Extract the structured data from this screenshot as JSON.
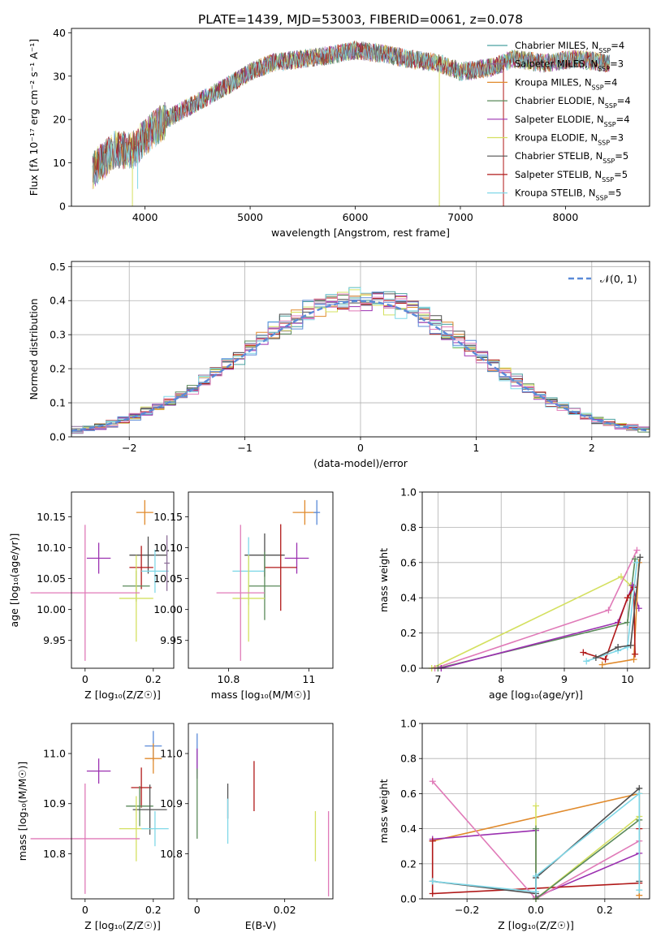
{
  "title": "PLATE=1439, MJD=53003, FIBERID=0061, z=0.078",
  "colors": {
    "Chabrier MILES": "#4aa0a0",
    "Salpeter MILES": "#8c6e98",
    "Kroupa MILES": "#e08a2c",
    "Chabrier ELODIE": "#5a8a5a",
    "Salpeter ELODIE": "#9b30b0",
    "Kroupa ELODIE": "#d4e060",
    "Chabrier STELIB": "#505050",
    "Salpeter STELIB": "#b01818",
    "Kroupa STELIB": "#80d8e8",
    "normal": "#5a8ad8",
    "pink": "#e07ab8",
    "blue": "#5a8ad8"
  },
  "legend1": {
    "models": [
      {
        "name": "Chabrier MILES",
        "n": "4"
      },
      {
        "name": "Salpeter MILES",
        "n": "3"
      },
      {
        "name": "Kroupa MILES",
        "n": "4"
      },
      {
        "name": "Chabrier ELODIE",
        "n": "4"
      },
      {
        "name": "Salpeter ELODIE",
        "n": "4"
      },
      {
        "name": "Kroupa ELODIE",
        "n": "3"
      },
      {
        "name": "Chabrier STELIB",
        "n": "5"
      },
      {
        "name": "Salpeter STELIB",
        "n": "5"
      },
      {
        "name": "Kroupa STELIB",
        "n": "5"
      }
    ],
    "nssp_prefix": "N",
    "nssp_sub": "SSP"
  },
  "legend2": {
    "label": "𝒩(0, 1)"
  },
  "chart_data": [
    {
      "type": "line",
      "id": "spectrum",
      "xlabel": "wavelength [Angstrom, rest frame]",
      "ylabel": "Flux [fλ 10⁻¹⁷ erg cm⁻² s⁻¹ A⁻¹]",
      "xlim": [
        3300,
        8800
      ],
      "ylim": [
        0,
        41
      ],
      "xticks": [
        4000,
        5000,
        6000,
        7000,
        8000
      ],
      "yticks": [
        0,
        10,
        20,
        30,
        40
      ],
      "x_range": [
        3500,
        8420
      ],
      "continuum": [
        [
          3500,
          8
        ],
        [
          3700,
          13
        ],
        [
          3900,
          13
        ],
        [
          4000,
          16
        ],
        [
          4200,
          20
        ],
        [
          4500,
          24
        ],
        [
          4800,
          28
        ],
        [
          5000,
          31
        ],
        [
          5200,
          33
        ],
        [
          5500,
          34
        ],
        [
          5800,
          35
        ],
        [
          6000,
          36
        ],
        [
          6300,
          35
        ],
        [
          6500,
          34
        ],
        [
          6800,
          33
        ],
        [
          7000,
          31
        ],
        [
          7300,
          32
        ],
        [
          7500,
          34
        ],
        [
          7800,
          33
        ],
        [
          8100,
          34
        ],
        [
          8400,
          33
        ]
      ]
    },
    {
      "type": "bar",
      "id": "residual_histogram",
      "xlabel": "(data-model)/error",
      "ylabel": "Normed distribution",
      "xlim": [
        -2.5,
        2.5
      ],
      "ylim": [
        0,
        0.515
      ],
      "xticks": [
        -2,
        -1,
        0,
        1,
        2
      ],
      "yticks": [
        0.0,
        0.1,
        0.2,
        0.3,
        0.4,
        0.5
      ],
      "bin_width": 0.1,
      "grid": true,
      "legend_position": "top-right",
      "normal_curve": "N(0,1)"
    },
    {
      "type": "scatter",
      "id": "age_vs_Z",
      "xlabel": "Z [log₁₀(Z/Z☉)]",
      "ylabel": "age  [log₁₀(age/yr)]",
      "xlim": [
        -0.04,
        0.26
      ],
      "ylim": [
        9.905,
        10.19
      ],
      "xticks": [
        0.0,
        0.2
      ],
      "yticks": [
        9.95,
        10.0,
        10.05,
        10.1,
        10.15
      ],
      "points": [
        {
          "series": "Kroupa MILES",
          "x": 0.175,
          "y": 10.157,
          "xerr": 0.025,
          "yerr": 0.02
        },
        {
          "series": "Salpeter ELODIE",
          "x": 0.04,
          "y": 10.083,
          "xerr": 0.035,
          "yerr": 0.025
        },
        {
          "series": "Chabrier STELIB",
          "x": 0.185,
          "y": 10.088,
          "xerr": 0.055,
          "yerr": 0.03
        },
        {
          "series": "Salpeter STELIB",
          "x": 0.165,
          "y": 10.068,
          "xerr": 0.035,
          "yerr": 0.035
        },
        {
          "series": "Kroupa STELIB",
          "x": 0.205,
          "y": 10.062,
          "xerr": 0.04,
          "yerr": 0.035
        },
        {
          "series": "Chabrier ELODIE",
          "x": 0.15,
          "y": 10.038,
          "xerr": 0.04,
          "yerr": 0.025
        },
        {
          "series": "Kroupa ELODIE",
          "x": 0.15,
          "y": 10.018,
          "xerr": 0.05,
          "yerr": 0.07
        },
        {
          "series": "Salpeter MILES",
          "x": 0.24,
          "y": 10.075,
          "xerr": 0.008,
          "yerr": 0.045
        },
        {
          "series": "pink",
          "x": 0.0,
          "y": 10.027,
          "xerr": 0.16,
          "yerr": 0.11
        }
      ]
    },
    {
      "type": "scatter",
      "id": "age_vs_mass",
      "xlabel": "mass [log₁₀(M/M☉)]",
      "ylabel": "",
      "xlim": [
        10.7,
        11.06
      ],
      "ylim": [
        9.905,
        10.19
      ],
      "xticks": [
        10.8,
        11.0
      ],
      "yticks": [
        9.95,
        10.0,
        10.05,
        10.1,
        10.15
      ],
      "points": [
        {
          "series": "Kroupa MILES",
          "x": 10.99,
          "y": 10.157,
          "xerr": 0.03,
          "yerr": 0.02
        },
        {
          "series": "blue",
          "x": 11.02,
          "y": 10.157,
          "xerr": 0.008,
          "yerr": 0.02
        },
        {
          "series": "Chabrier STELIB",
          "x": 10.89,
          "y": 10.088,
          "xerr": 0.05,
          "yerr": 0.035
        },
        {
          "series": "Salpeter ELODIE",
          "x": 10.97,
          "y": 10.083,
          "xerr": 0.03,
          "yerr": 0.025
        },
        {
          "series": "Salpeter STELIB",
          "x": 10.93,
          "y": 10.068,
          "xerr": 0.04,
          "yerr": 0.07
        },
        {
          "series": "Kroupa STELIB",
          "x": 10.85,
          "y": 10.062,
          "xerr": 0.04,
          "yerr": 0.055
        },
        {
          "series": "Chabrier ELODIE",
          "x": 10.89,
          "y": 10.038,
          "xerr": 0.04,
          "yerr": 0.055
        },
        {
          "series": "Kroupa ELODIE",
          "x": 10.85,
          "y": 10.018,
          "xerr": 0.04,
          "yerr": 0.07
        },
        {
          "series": "pink",
          "x": 10.83,
          "y": 10.027,
          "xerr": 0.06,
          "yerr": 0.11
        }
      ]
    },
    {
      "type": "line",
      "id": "mass_weight_vs_age",
      "xlabel": "age  [log₁₀(age/yr)]",
      "ylabel": "mass weight",
      "xlim": [
        6.75,
        10.35
      ],
      "ylim": [
        0,
        1
      ],
      "xticks": [
        7,
        8,
        9,
        10
      ],
      "yticks": [
        0.0,
        0.2,
        0.4,
        0.6,
        0.8,
        1.0
      ],
      "grid": true,
      "series": [
        {
          "name": "Kroupa ELODIE",
          "points": [
            [
              6.9,
              0.0
            ],
            [
              9.9,
              0.52
            ],
            [
              10.05,
              0.47
            ]
          ]
        },
        {
          "name": "pink",
          "points": [
            [
              6.95,
              0.0
            ],
            [
              9.7,
              0.33
            ],
            [
              10.15,
              0.67
            ]
          ]
        },
        {
          "name": "Chabrier ELODIE",
          "points": [
            [
              7.0,
              0.0
            ],
            [
              10.0,
              0.26
            ],
            [
              10.12,
              0.62
            ]
          ]
        },
        {
          "name": "Salpeter ELODIE",
          "points": [
            [
              7.05,
              0.0
            ],
            [
              9.85,
              0.26
            ],
            [
              10.08,
              0.47
            ],
            [
              10.18,
              0.34
            ]
          ]
        },
        {
          "name": "Kroupa MILES",
          "points": [
            [
              9.6,
              0.02
            ],
            [
              10.1,
              0.05
            ],
            [
              10.18,
              0.6
            ]
          ]
        },
        {
          "name": "Salpeter STELIB",
          "points": [
            [
              9.3,
              0.09
            ],
            [
              9.65,
              0.05
            ],
            [
              10.0,
              0.4
            ],
            [
              10.1,
              0.46
            ],
            [
              10.12,
              0.08
            ]
          ]
        },
        {
          "name": "Kroupa STELIB",
          "points": [
            [
              9.35,
              0.04
            ],
            [
              9.85,
              0.1
            ],
            [
              10.0,
              0.12
            ],
            [
              10.15,
              0.6
            ]
          ]
        },
        {
          "name": "Chabrier STELIB",
          "points": [
            [
              9.5,
              0.06
            ],
            [
              9.85,
              0.12
            ],
            [
              10.05,
              0.13
            ],
            [
              10.2,
              0.63
            ]
          ]
        }
      ]
    },
    {
      "type": "scatter",
      "id": "mass_vs_Z",
      "xlabel": "Z [log₁₀(Z/Z☉)]",
      "ylabel": "mass [log₁₀(M/M☉)]",
      "xlim": [
        -0.04,
        0.26
      ],
      "ylim": [
        10.71,
        11.06
      ],
      "xticks": [
        0.0,
        0.2
      ],
      "yticks": [
        10.8,
        10.9,
        11.0
      ],
      "points": [
        {
          "series": "blue",
          "x": 0.2,
          "y": 11.015,
          "xerr": 0.025,
          "yerr": 0.03
        },
        {
          "series": "Kroupa MILES",
          "x": 0.2,
          "y": 10.99,
          "xerr": 0.025,
          "yerr": 0.03
        },
        {
          "series": "Salpeter ELODIE",
          "x": 0.04,
          "y": 10.965,
          "xerr": 0.035,
          "yerr": 0.025
        },
        {
          "series": "Salpeter STELIB",
          "x": 0.165,
          "y": 10.932,
          "xerr": 0.03,
          "yerr": 0.04
        },
        {
          "series": "Chabrier ELODIE",
          "x": 0.16,
          "y": 10.895,
          "xerr": 0.04,
          "yerr": 0.04
        },
        {
          "series": "Chabrier STELIB",
          "x": 0.19,
          "y": 10.888,
          "xerr": 0.05,
          "yerr": 0.05
        },
        {
          "series": "Kroupa ELODIE",
          "x": 0.15,
          "y": 10.85,
          "xerr": 0.05,
          "yerr": 0.065
        },
        {
          "series": "Kroupa STELIB",
          "x": 0.205,
          "y": 10.85,
          "xerr": 0.04,
          "yerr": 0.035
        },
        {
          "series": "pink",
          "x": 0.0,
          "y": 10.83,
          "xerr": 0.16,
          "yerr": 0.11
        }
      ]
    },
    {
      "type": "scatter",
      "id": "mass_vs_ebv",
      "xlabel": "E(B-V)",
      "ylabel": "",
      "xlim": [
        -0.002,
        0.031
      ],
      "ylim": [
        10.71,
        11.06
      ],
      "xticks": [
        0.0,
        0.02
      ],
      "yticks": [
        10.8,
        10.9,
        11.0
      ],
      "points": [
        {
          "series": "blue",
          "x": 0.0,
          "y": 11.0,
          "xerr": 0,
          "yerr": 0.04
        },
        {
          "series": "Salpeter ELODIE",
          "x": 0.0,
          "y": 10.98,
          "xerr": 0,
          "yerr": 0.03
        },
        {
          "series": "Chabrier ELODIE",
          "x": 0.0,
          "y": 10.9,
          "xerr": 0,
          "yerr": 0.07
        },
        {
          "series": "Chabrier STELIB",
          "x": 0.007,
          "y": 10.905,
          "xerr": 0,
          "yerr": 0.035
        },
        {
          "series": "Kroupa STELIB",
          "x": 0.007,
          "y": 10.865,
          "xerr": 0,
          "yerr": 0.045
        },
        {
          "series": "Salpeter STELIB",
          "x": 0.013,
          "y": 10.935,
          "xerr": 0,
          "yerr": 0.05
        },
        {
          "series": "Kroupa ELODIE",
          "x": 0.027,
          "y": 10.835,
          "xerr": 0,
          "yerr": 0.05
        },
        {
          "series": "pink",
          "x": 0.03,
          "y": 10.8,
          "xerr": 0,
          "yerr": 0.085
        }
      ]
    },
    {
      "type": "line",
      "id": "mass_weight_vs_Z",
      "xlabel": "Z [log₁₀(Z/Z☉)]",
      "ylabel": "mass weight",
      "xlim": [
        -0.33,
        0.33
      ],
      "ylim": [
        0,
        1
      ],
      "xticks": [
        -0.2,
        0.0,
        0.2
      ],
      "yticks": [
        0.0,
        0.2,
        0.4,
        0.6,
        0.8,
        1.0
      ],
      "grid": true,
      "series": [
        {
          "name": "Kroupa MILES",
          "points": [
            [
              -0.3,
              0.33
            ],
            [
              0.3,
              0.6
            ],
            [
              0.3,
              0.02
            ]
          ]
        },
        {
          "name": "Salpeter ELODIE",
          "points": [
            [
              -0.3,
              0.34
            ],
            [
              0.0,
              0.39
            ],
            [
              0.0,
              0.01
            ],
            [
              0.3,
              0.26
            ]
          ]
        },
        {
          "name": "Salpeter STELIB",
          "points": [
            [
              -0.3,
              0.33
            ],
            [
              -0.3,
              0.03
            ],
            [
              0.3,
              0.09
            ],
            [
              0.3,
              0.4
            ]
          ]
        },
        {
          "name": "pink",
          "points": [
            [
              -0.3,
              0.67
            ],
            [
              0.0,
              0.0
            ],
            [
              0.3,
              0.33
            ]
          ]
        },
        {
          "name": "Kroupa ELODIE",
          "points": [
            [
              0.0,
              0.53
            ],
            [
              0.0,
              0.0
            ],
            [
              0.3,
              0.47
            ]
          ]
        },
        {
          "name": "Chabrier ELODIE",
          "points": [
            [
              0.0,
              0.4
            ],
            [
              0.0,
              0.0
            ],
            [
              0.3,
              0.45
            ]
          ]
        },
        {
          "name": "Chabrier STELIB",
          "points": [
            [
              -0.3,
              0.1
            ],
            [
              0.0,
              0.03
            ],
            [
              0.0,
              0.12
            ],
            [
              0.3,
              0.63
            ],
            [
              0.3,
              0.1
            ]
          ]
        },
        {
          "name": "Kroupa STELIB",
          "points": [
            [
              -0.3,
              0.1
            ],
            [
              0.0,
              0.04
            ],
            [
              0.0,
              0.13
            ],
            [
              0.3,
              0.6
            ],
            [
              0.3,
              0.05
            ]
          ]
        }
      ]
    }
  ]
}
